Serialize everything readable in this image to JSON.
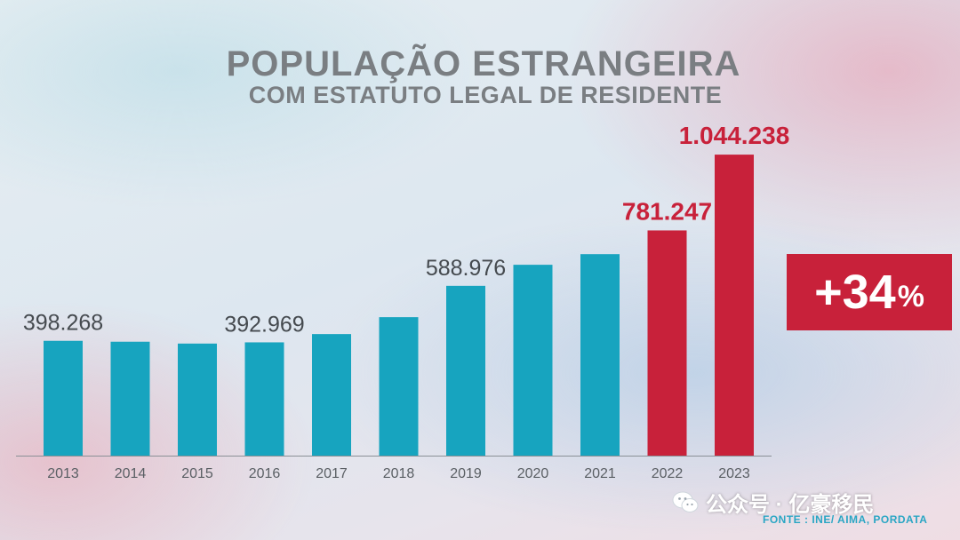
{
  "chart_data": {
    "type": "bar",
    "title": "POPULAÇÃO ESTRANGEIRA",
    "subtitle": "COM ESTATUTO LEGAL DE RESIDENTE",
    "categories": [
      "2013",
      "2014",
      "2015",
      "2016",
      "2017",
      "2018",
      "2019",
      "2020",
      "2021",
      "2022",
      "2023"
    ],
    "values": [
      398268,
      395195,
      388731,
      392969,
      421711,
      480300,
      588976,
      662095,
      698887,
      781247,
      1044238
    ],
    "data_labels": [
      {
        "index": 0,
        "text": "398.268"
      },
      {
        "index": 3,
        "text": "392.969"
      },
      {
        "index": 6,
        "text": "588.976"
      },
      {
        "index": 9,
        "text": "781.247"
      },
      {
        "index": 10,
        "text": "1.044.238"
      }
    ],
    "ylim": [
      0,
      1100000
    ],
    "highlight_indices": [
      9,
      10
    ],
    "grid": false,
    "colors": {
      "normal": "#17a4bf",
      "highlight": "#c8213a",
      "label": "#454a4f",
      "axis": "#5a5f64"
    }
  },
  "badge": {
    "value": "+34",
    "unit": "%"
  },
  "watermark": {
    "text": "公众号 · 亿豪移民",
    "icon": "wechat-icon"
  },
  "source": "FONTE : INE/ AIMA, PORDATA"
}
